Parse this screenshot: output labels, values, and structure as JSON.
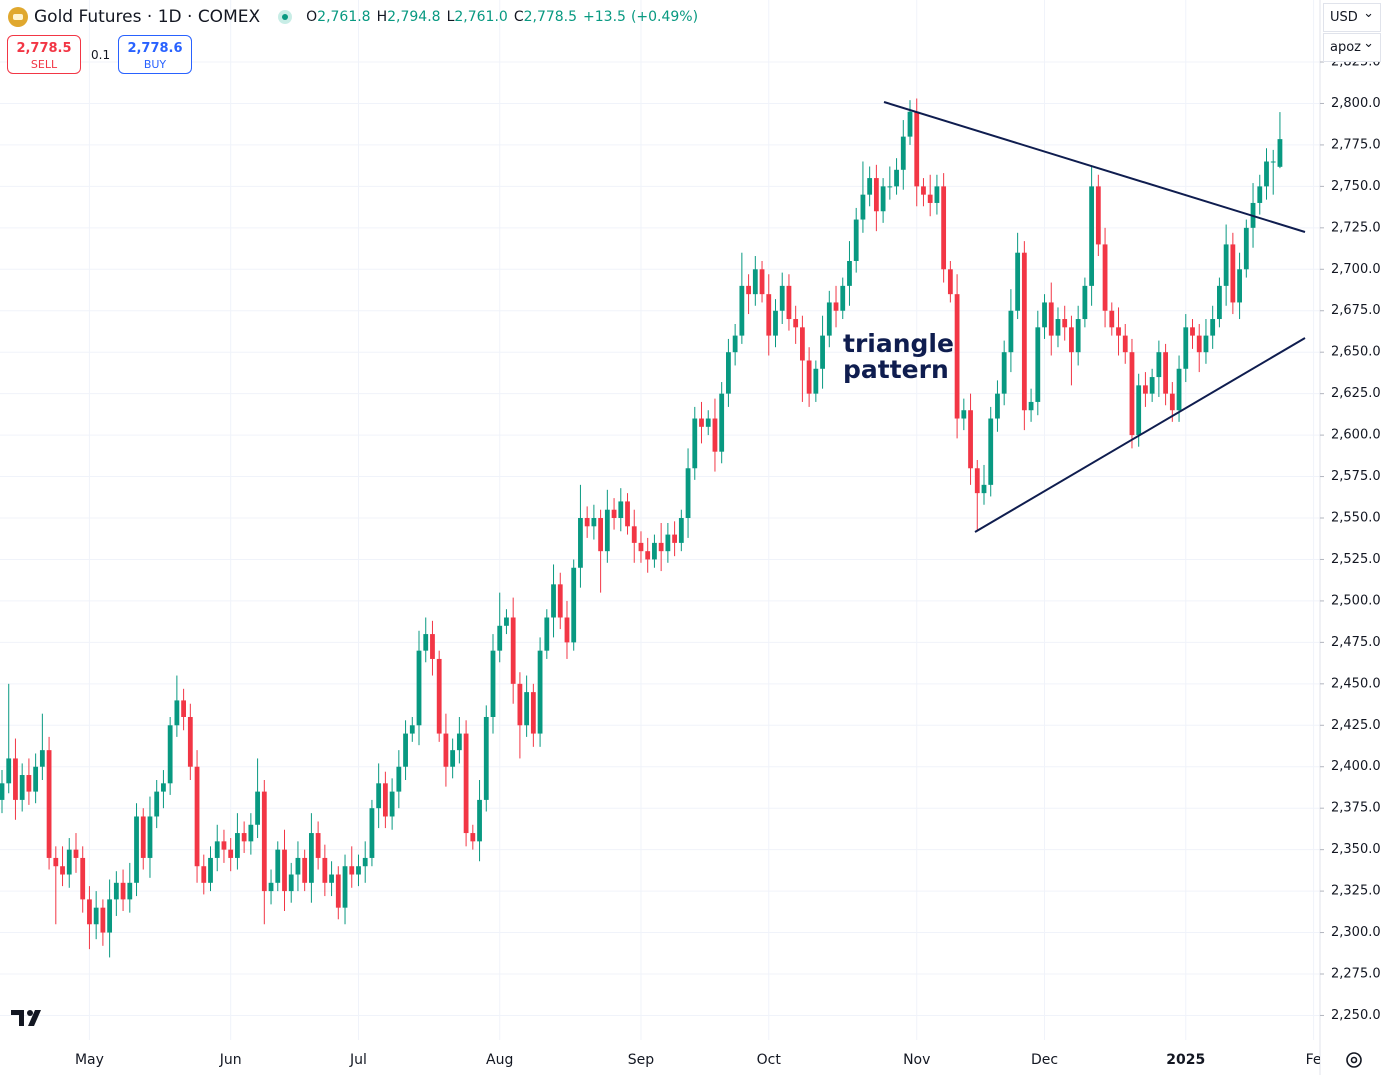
{
  "header": {
    "symbol": "Gold Futures · 1D · COMEX",
    "ohlc": [
      {
        "key": "O",
        "value": "2,761.8"
      },
      {
        "key": "H",
        "value": "2,794.8"
      },
      {
        "key": "L",
        "value": "2,761.0"
      },
      {
        "key": "C",
        "value": "2,778.5"
      }
    ],
    "change": "+13.5",
    "change_pct": "(+0.49%)"
  },
  "trade": {
    "sell_price": "2,778.5",
    "sell": "SELL",
    "spread": "0.1",
    "buy_price": "2,778.6",
    "buy": "BUY"
  },
  "controls": {
    "currency": "USD",
    "unit": "apoz"
  },
  "chart_data": {
    "type": "candlestick",
    "annotation": "triangle pattern",
    "up_color": "#089981",
    "down_color": "#f23645",
    "grid": true,
    "ylim": [
      2235.2,
      2862.4
    ],
    "yticks": [
      {
        "value": 2250,
        "label": "2,250.0"
      },
      {
        "value": 2275,
        "label": "2,275.0"
      },
      {
        "value": 2300,
        "label": "2,300.0"
      },
      {
        "value": 2325,
        "label": "2,325.0"
      },
      {
        "value": 2350,
        "label": "2,350.0"
      },
      {
        "value": 2375,
        "label": "2,375.0"
      },
      {
        "value": 2400,
        "label": "2,400.0"
      },
      {
        "value": 2425,
        "label": "2,425.0"
      },
      {
        "value": 2450,
        "label": "2,450.0"
      },
      {
        "value": 2475,
        "label": "2,475.0"
      },
      {
        "value": 2500,
        "label": "2,500.0"
      },
      {
        "value": 2525,
        "label": "2,525.0"
      },
      {
        "value": 2550,
        "label": "2,550.0"
      },
      {
        "value": 2575,
        "label": "2,575.0"
      },
      {
        "value": 2600,
        "label": "2,600.0"
      },
      {
        "value": 2625,
        "label": "2,625.0"
      },
      {
        "value": 2650,
        "label": "2,650.0"
      },
      {
        "value": 2675,
        "label": "2,675.0"
      },
      {
        "value": 2700,
        "label": "2,700.0"
      },
      {
        "value": 2725,
        "label": "2,725.0"
      },
      {
        "value": 2750,
        "label": "2,750.0"
      },
      {
        "value": 2775,
        "label": "2,775.0"
      },
      {
        "value": 2800,
        "label": "2,800.0"
      },
      {
        "value": 2825,
        "label": "2,825.0"
      }
    ],
    "categories": [
      null,
      null,
      null,
      null,
      null,
      null,
      null,
      null,
      null,
      null,
      null,
      null,
      null,
      "May",
      null,
      null,
      null,
      null,
      null,
      null,
      null,
      null,
      null,
      null,
      null,
      null,
      null,
      null,
      null,
      null,
      null,
      null,
      null,
      null,
      "Jun",
      null,
      null,
      null,
      null,
      null,
      null,
      null,
      null,
      null,
      null,
      null,
      null,
      null,
      null,
      null,
      null,
      null,
      null,
      "Jul",
      null,
      null,
      null,
      null,
      null,
      null,
      null,
      null,
      null,
      null,
      null,
      null,
      null,
      null,
      null,
      null,
      null,
      null,
      null,
      null,
      "Aug",
      null,
      null,
      null,
      null,
      null,
      null,
      null,
      null,
      null,
      null,
      null,
      null,
      null,
      null,
      null,
      null,
      null,
      null,
      null,
      null,
      "Sep",
      null,
      null,
      null,
      null,
      null,
      null,
      null,
      null,
      null,
      null,
      null,
      null,
      null,
      null,
      null,
      null,
      null,
      null,
      "Oct",
      null,
      null,
      null,
      null,
      null,
      null,
      null,
      null,
      null,
      null,
      null,
      null,
      null,
      null,
      null,
      null,
      null,
      null,
      null,
      null,
      null,
      "Nov",
      null,
      null,
      null,
      null,
      null,
      null,
      null,
      null,
      null,
      null,
      null,
      null,
      null,
      null,
      null,
      null,
      null,
      null,
      "Dec",
      null,
      null,
      null,
      null,
      null,
      null,
      null,
      null,
      null,
      null,
      null,
      null,
      null,
      null,
      null,
      null,
      null,
      null,
      null,
      null,
      "2025",
      null,
      null,
      null,
      null,
      null,
      null,
      null,
      null,
      null,
      null,
      null,
      null,
      null,
      null,
      null,
      null,
      null,
      null,
      "Fe"
    ],
    "open": [
      2380,
      2390,
      2405,
      2380,
      2395,
      2385,
      2400,
      2410,
      2345,
      2340,
      2335,
      2350,
      2345,
      2320,
      2305,
      2315,
      2300,
      2320,
      2330,
      2320,
      2330,
      2370,
      2345,
      2370,
      2385,
      2390,
      2425,
      2440,
      2430,
      2400,
      2340,
      2330,
      2345,
      2355,
      2350,
      2345,
      2360,
      2355,
      2365,
      2385,
      2325,
      2330,
      2350,
      2325,
      2335,
      2345,
      2330,
      2360,
      2345,
      2330,
      2335,
      2315,
      2340,
      2335,
      2340,
      2345,
      2375,
      2390,
      2370,
      2385,
      2400,
      2420,
      2425,
      2470,
      2480,
      2465,
      2420,
      2400,
      2410,
      2420,
      2360,
      2355,
      2380,
      2430,
      2470,
      2485,
      2490,
      2450,
      2425,
      2445,
      2420,
      2470,
      2490,
      2510,
      2490,
      2475,
      2520,
      2550,
      2545,
      2550,
      2530,
      2555,
      2550,
      2560,
      2545,
      2535,
      2530,
      2525,
      2535,
      2530,
      2540,
      2535,
      2550,
      2580,
      2610,
      2605,
      2610,
      2590,
      2625,
      2650,
      2660,
      2690,
      2685,
      2700,
      2685,
      2660,
      2675,
      2690,
      2670,
      2665,
      2645,
      2625,
      2640,
      2660,
      2680,
      2675,
      2690,
      2705,
      2730,
      2745,
      2755,
      2735,
      2750,
      2750,
      2760,
      2780,
      2795,
      2750,
      2745,
      2740,
      2750,
      2700,
      2685,
      2610,
      2615,
      2580,
      2565,
      2570,
      2610,
      2625,
      2650,
      2675,
      2710,
      2615,
      2620,
      2665,
      2680,
      2660,
      2670,
      2665,
      2650,
      2670,
      2690,
      2750,
      2715,
      2675,
      2665,
      2660,
      2650,
      2600,
      2630,
      2625,
      2635,
      2650,
      2625,
      2615,
      2640,
      2665,
      2660,
      2650,
      2660,
      2670,
      2690,
      2715,
      2680,
      2700,
      2725,
      2740,
      2750,
      2765,
      2761.8,
      null,
      null,
      null,
      null,
      null
    ],
    "high": [
      2398,
      2450,
      2417,
      2402,
      2405,
      2408,
      2432,
      2418,
      2352,
      2352,
      2357,
      2360,
      2352,
      2328,
      2325,
      2320,
      2332,
      2337,
      2338,
      2342,
      2378,
      2375,
      2382,
      2392,
      2398,
      2430,
      2455,
      2447,
      2438,
      2410,
      2347,
      2352,
      2365,
      2362,
      2357,
      2372,
      2367,
      2372,
      2405,
      2392,
      2338,
      2355,
      2362,
      2342,
      2355,
      2350,
      2372,
      2367,
      2353,
      2343,
      2340,
      2347,
      2352,
      2347,
      2355,
      2380,
      2402,
      2397,
      2393,
      2410,
      2428,
      2430,
      2482,
      2490,
      2488,
      2470,
      2432,
      2417,
      2430,
      2428,
      2365,
      2392,
      2437,
      2480,
      2505,
      2495,
      2502,
      2457,
      2455,
      2450,
      2478,
      2495,
      2522,
      2517,
      2500,
      2525,
      2570,
      2557,
      2558,
      2555,
      2567,
      2562,
      2568,
      2565,
      2555,
      2542,
      2538,
      2540,
      2547,
      2547,
      2548,
      2555,
      2592,
      2617,
      2620,
      2615,
      2622,
      2632,
      2658,
      2667,
      2710,
      2697,
      2708,
      2705,
      2697,
      2682,
      2698,
      2697,
      2678,
      2672,
      2653,
      2645,
      2672,
      2687,
      2690,
      2695,
      2717,
      2737,
      2765,
      2762,
      2763,
      2755,
      2762,
      2767,
      2790,
      2802,
      2803,
      2755,
      2757,
      2757,
      2758,
      2705,
      2697,
      2622,
      2625,
      2585,
      2582,
      2617,
      2633,
      2657,
      2688,
      2722,
      2717,
      2628,
      2675,
      2685,
      2692,
      2677,
      2678,
      2672,
      2678,
      2695,
      2762,
      2757,
      2725,
      2680,
      2677,
      2667,
      2658,
      2637,
      2638,
      2640,
      2657,
      2655,
      2632,
      2648,
      2673,
      2670,
      2667,
      2670,
      2678,
      2695,
      2727,
      2722,
      2710,
      2730,
      2752,
      2757,
      2773,
      2772,
      2794.8,
      null,
      null,
      null,
      null,
      null
    ],
    "low": [
      2372,
      2384,
      2368,
      2373,
      2377,
      2378,
      2392,
      2338,
      2305,
      2328,
      2327,
      2336,
      2312,
      2290,
      2296,
      2292,
      2285,
      2310,
      2313,
      2312,
      2322,
      2338,
      2333,
      2363,
      2375,
      2383,
      2418,
      2422,
      2392,
      2330,
      2323,
      2325,
      2337,
      2342,
      2337,
      2338,
      2348,
      2347,
      2357,
      2305,
      2317,
      2325,
      2313,
      2318,
      2325,
      2325,
      2318,
      2338,
      2322,
      2322,
      2308,
      2305,
      2327,
      2328,
      2330,
      2340,
      2363,
      2363,
      2362,
      2375,
      2392,
      2415,
      2413,
      2463,
      2455,
      2415,
      2388,
      2393,
      2402,
      2352,
      2350,
      2343,
      2373,
      2420,
      2463,
      2480,
      2438,
      2405,
      2418,
      2412,
      2412,
      2465,
      2478,
      2483,
      2465,
      2470,
      2508,
      2538,
      2537,
      2505,
      2523,
      2543,
      2542,
      2540,
      2523,
      2523,
      2517,
      2520,
      2518,
      2523,
      2527,
      2530,
      2538,
      2573,
      2595,
      2600,
      2578,
      2583,
      2617,
      2642,
      2655,
      2673,
      2678,
      2680,
      2648,
      2653,
      2667,
      2663,
      2655,
      2620,
      2617,
      2620,
      2628,
      2653,
      2665,
      2670,
      2678,
      2698,
      2722,
      2738,
      2723,
      2728,
      2742,
      2745,
      2748,
      2775,
      2738,
      2738,
      2732,
      2733,
      2692,
      2680,
      2598,
      2603,
      2570,
      2542,
      2558,
      2563,
      2602,
      2618,
      2638,
      2670,
      2603,
      2608,
      2612,
      2658,
      2648,
      2653,
      2657,
      2630,
      2642,
      2665,
      2678,
      2708,
      2665,
      2660,
      2648,
      2643,
      2592,
      2593,
      2617,
      2620,
      2623,
      2618,
      2608,
      2608,
      2632,
      2652,
      2638,
      2643,
      2652,
      2665,
      2678,
      2673,
      2670,
      2695,
      2713,
      2733,
      2742,
      2745,
      2761.0,
      null,
      null,
      null,
      null,
      null
    ],
    "close": [
      2390,
      2405,
      2380,
      2395,
      2385,
      2400,
      2410,
      2345,
      2340,
      2335,
      2350,
      2345,
      2320,
      2305,
      2315,
      2300,
      2320,
      2330,
      2320,
      2330,
      2370,
      2345,
      2370,
      2385,
      2390,
      2425,
      2440,
      2430,
      2400,
      2340,
      2330,
      2345,
      2355,
      2350,
      2345,
      2360,
      2355,
      2365,
      2385,
      2325,
      2330,
      2350,
      2325,
      2335,
      2345,
      2330,
      2360,
      2345,
      2330,
      2335,
      2315,
      2340,
      2335,
      2340,
      2345,
      2375,
      2390,
      2370,
      2385,
      2400,
      2420,
      2425,
      2470,
      2480,
      2465,
      2420,
      2400,
      2410,
      2420,
      2360,
      2355,
      2380,
      2430,
      2470,
      2485,
      2490,
      2450,
      2425,
      2445,
      2420,
      2470,
      2490,
      2510,
      2490,
      2475,
      2520,
      2550,
      2545,
      2550,
      2530,
      2555,
      2550,
      2560,
      2545,
      2535,
      2530,
      2525,
      2535,
      2530,
      2540,
      2535,
      2550,
      2580,
      2610,
      2605,
      2610,
      2590,
      2625,
      2650,
      2660,
      2690,
      2685,
      2700,
      2685,
      2660,
      2675,
      2690,
      2670,
      2665,
      2645,
      2625,
      2640,
      2660,
      2680,
      2675,
      2690,
      2705,
      2730,
      2745,
      2755,
      2735,
      2750,
      2750,
      2760,
      2780,
      2795,
      2750,
      2745,
      2740,
      2750,
      2700,
      2685,
      2610,
      2615,
      2580,
      2565,
      2570,
      2610,
      2625,
      2650,
      2675,
      2710,
      2615,
      2620,
      2665,
      2680,
      2660,
      2670,
      2665,
      2650,
      2670,
      2690,
      2750,
      2715,
      2675,
      2665,
      2660,
      2650,
      2600,
      2630,
      2625,
      2635,
      2650,
      2625,
      2615,
      2640,
      2665,
      2660,
      2650,
      2660,
      2670,
      2690,
      2715,
      2680,
      2700,
      2725,
      2740,
      2750,
      2765,
      2765,
      2778.5,
      null,
      null,
      null,
      null,
      null
    ]
  }
}
